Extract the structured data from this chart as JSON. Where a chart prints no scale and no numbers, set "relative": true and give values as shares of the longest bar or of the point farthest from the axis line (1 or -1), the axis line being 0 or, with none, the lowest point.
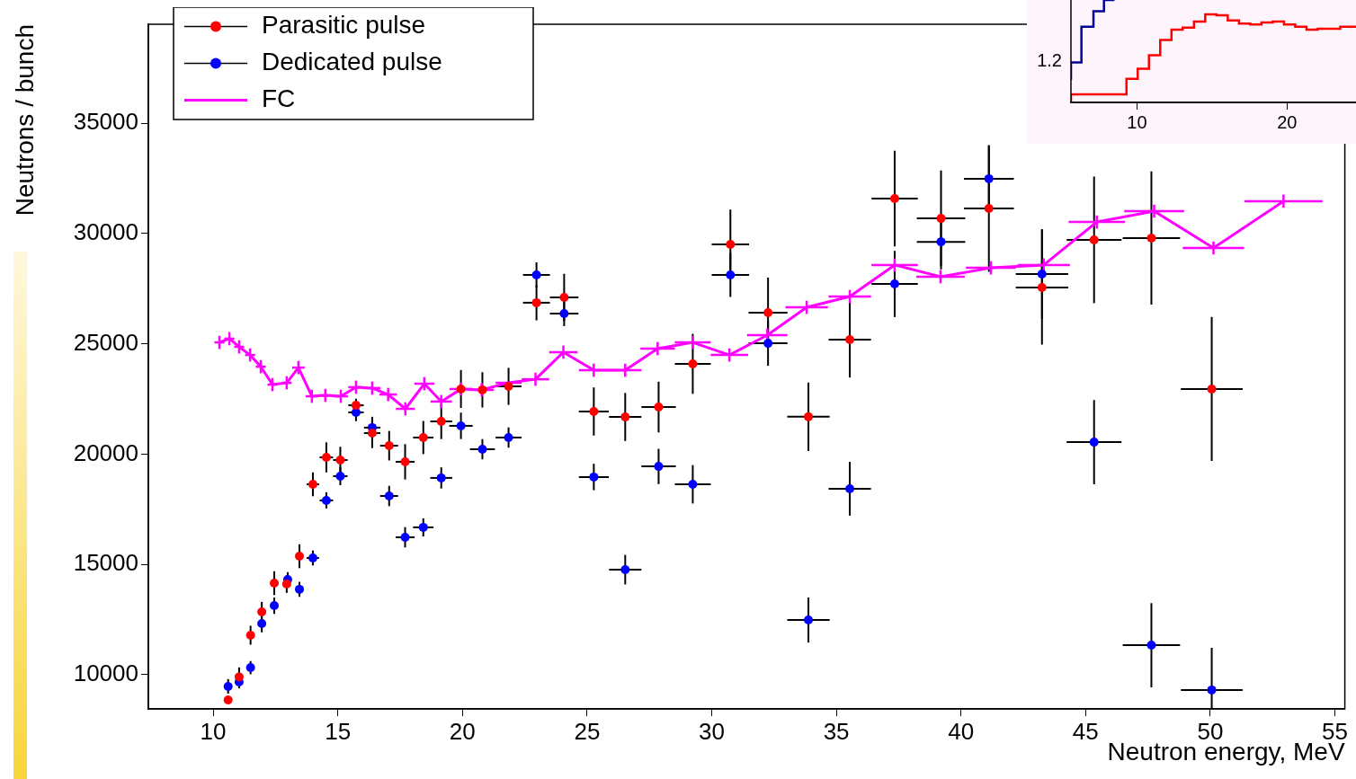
{
  "chart_data": [
    {
      "type": "scatter",
      "xlabel": "Neutron energy, MeV",
      "ylabel": "Neutrons / bunch",
      "xlim": [
        7.4,
        55.4
      ],
      "xticks": [
        10,
        15,
        20,
        25,
        30,
        35,
        40,
        45,
        50,
        55
      ],
      "ylim": [
        8450,
        39480
      ],
      "yticks": [
        10000,
        15000,
        20000,
        25000,
        30000,
        35000
      ],
      "grid": false,
      "legend": "top left",
      "series": [
        {
          "name": "Parasitic pulse",
          "type": "scatter",
          "color": "#ff0000",
          "marker": "circle",
          "x": [
            10.6,
            11.04,
            11.5,
            11.95,
            12.45,
            12.95,
            13.46,
            14.0,
            14.54,
            15.1,
            15.73,
            16.38,
            17.06,
            17.7,
            18.43,
            19.15,
            19.94,
            20.8,
            21.85,
            22.97,
            24.08,
            25.27,
            26.53,
            27.87,
            29.24,
            30.75,
            32.26,
            33.88,
            35.54,
            37.34,
            39.2,
            41.12,
            43.25,
            45.34,
            47.64,
            50.06
          ],
          "values": [
            8860,
            9900,
            11790,
            12850,
            14150,
            14110,
            15370,
            18630,
            19850,
            19730,
            22210,
            20950,
            20380,
            19650,
            20750,
            21480,
            22950,
            22910,
            23070,
            26860,
            27100,
            21930,
            21680,
            22130,
            24090,
            29500,
            26410,
            21690,
            25190,
            31580,
            30680,
            31130,
            27550,
            29710,
            29790,
            22950
          ],
          "errors": [
            null,
            430,
            430,
            450,
            540,
            400,
            540,
            540,
            680,
            600,
            300,
            680,
            670,
            800,
            750,
            800,
            860,
            800,
            840,
            800,
            1070,
            1090,
            1090,
            1150,
            1360,
            1580,
            1590,
            1550,
            1720,
            2170,
            2170,
            2870,
            2590,
            2870,
            3020,
            3260
          ],
          "xerrors": [
            null,
            null,
            null,
            null,
            null,
            null,
            null,
            0.25,
            0.27,
            0.29,
            0.31,
            0.33,
            0.36,
            0.38,
            0.41,
            0.44,
            null,
            null,
            0.52,
            0.54,
            0.57,
            0.6,
            0.65,
            0.69,
            0.72,
            0.75,
            0.78,
            0.85,
            0.85,
            0.93,
            0.97,
            1.0,
            1.05,
            1.1,
            1.15,
            1.24
          ]
        },
        {
          "name": "Dedicated pulse",
          "type": "scatter",
          "color": "#0000ff",
          "marker": "circle",
          "x": [
            10.6,
            11.04,
            11.5,
            11.95,
            12.45,
            12.99,
            13.46,
            14.0,
            14.54,
            15.1,
            15.73,
            16.38,
            17.06,
            17.7,
            18.43,
            19.15,
            19.94,
            20.8,
            21.85,
            22.97,
            24.08,
            25.27,
            26.53,
            27.87,
            29.24,
            30.75,
            32.26,
            33.88,
            35.54,
            37.34,
            39.2,
            41.12,
            43.25,
            45.34,
            47.64,
            50.06
          ],
          "values": [
            9470,
            9670,
            10320,
            12320,
            13130,
            14310,
            13870,
            15290,
            17900,
            19000,
            21890,
            21200,
            18100,
            16230,
            16680,
            18920,
            21280,
            20220,
            20750,
            28120,
            26370,
            18960,
            14760,
            19440,
            18630,
            28120,
            25020,
            12480,
            18430,
            27710,
            29620,
            32480,
            28160,
            20540,
            11340,
            9310
          ],
          "errors": [
            330,
            290,
            300,
            400,
            370,
            340,
            340,
            340,
            370,
            410,
            400,
            490,
            460,
            460,
            410,
            480,
            600,
            460,
            460,
            570,
            570,
            600,
            670,
            800,
            870,
            1000,
            1020,
            1020,
            1220,
            1500,
            1250,
            1500,
            2040,
            1910,
            1910,
            [
              8450,
              11220
            ]
          ],
          "xerrors": [
            null,
            null,
            null,
            null,
            null,
            null,
            null,
            0.25,
            0.27,
            0.29,
            0.31,
            0.33,
            0.36,
            0.38,
            0.41,
            0.44,
            0.47,
            0.5,
            0.52,
            0.54,
            0.57,
            0.6,
            0.65,
            0.69,
            0.72,
            0.75,
            0.78,
            0.85,
            0.85,
            0.93,
            0.97,
            1.0,
            1.05,
            1.1,
            1.15,
            1.24
          ]
        },
        {
          "name": "FC",
          "type": "line",
          "color": "#ff00ff",
          "marker": "none",
          "x": [
            10.25,
            10.65,
            11.04,
            11.48,
            11.91,
            12.38,
            12.95,
            13.42,
            13.96,
            14.5,
            15.12,
            15.73,
            16.38,
            17.02,
            17.71,
            18.47,
            19.15,
            19.94,
            20.77,
            21.85,
            22.93,
            24.05,
            25.27,
            26.53,
            27.83,
            29.24,
            30.71,
            32.23,
            33.81,
            35.54,
            37.34,
            39.18,
            41.2,
            43.32,
            45.45,
            47.75,
            50.13,
            52.94
          ],
          "values": [
            25060,
            25230,
            24860,
            24490,
            23960,
            23150,
            23230,
            23920,
            22620,
            22660,
            22620,
            23030,
            22990,
            22700,
            22050,
            23190,
            22380,
            22950,
            22910,
            23230,
            23390,
            24620,
            23800,
            23800,
            24780,
            25060,
            24490,
            25390,
            26650,
            27140,
            28570,
            28040,
            28440,
            28570,
            30520,
            31010,
            29340,
            31460
          ],
          "errors": [
            300,
            300,
            300,
            300,
            300,
            300,
            300,
            300,
            300,
            300,
            300,
            300,
            300,
            300,
            300,
            300,
            300,
            300,
            300,
            null,
            300,
            300,
            300,
            300,
            300,
            300,
            300,
            300,
            300,
            300,
            300,
            300,
            300,
            300,
            300,
            300,
            300,
            300
          ],
          "xerrors": [
            0.2,
            0.2,
            0.2,
            0.2,
            0.2,
            0.2,
            0.2,
            0.25,
            0.25,
            0.27,
            0.29,
            0.31,
            0.33,
            0.35,
            0.38,
            0.4,
            0.43,
            0.46,
            0.49,
            0.52,
            0.55,
            0.57,
            0.6,
            0.65,
            0.69,
            0.72,
            0.75,
            0.81,
            0.85,
            0.85,
            0.93,
            0.97,
            1.0,
            1.05,
            1.13,
            1.2,
            1.23,
            1.56
          ]
        }
      ]
    },
    {
      "type": "step",
      "relative": true,
      "xlim": [
        5.6,
        24.6
      ],
      "xticks": [
        10,
        20
      ],
      "annotations": [
        "1.2"
      ],
      "series": [
        {
          "color": "#000099",
          "x": [
            5.6,
            6.3,
            7.1,
            7.8,
            8.5
          ],
          "values": [
            0.22,
            0.39,
            0.74,
            0.89,
            1
          ]
        },
        {
          "color": "#ff0000",
          "x": [
            5.6,
            9.3,
            10.05,
            10.8,
            11.55,
            12.3,
            13.05,
            13.8,
            14.55,
            15.3,
            16.05,
            16.8,
            17.55,
            18.3,
            19.05,
            19.8,
            20.55,
            21.3,
            22.05,
            23.55,
            24.3,
            24.6
          ],
          "values": [
            0,
            0.08,
            0.23,
            0.33,
            0.46,
            0.61,
            0.71,
            0.73,
            0.79,
            0.86,
            0.85,
            0.8,
            0.77,
            0.76,
            0.78,
            0.79,
            0.76,
            0.74,
            0.71,
            0.72,
            0.74,
            0.74
          ]
        }
      ]
    }
  ]
}
